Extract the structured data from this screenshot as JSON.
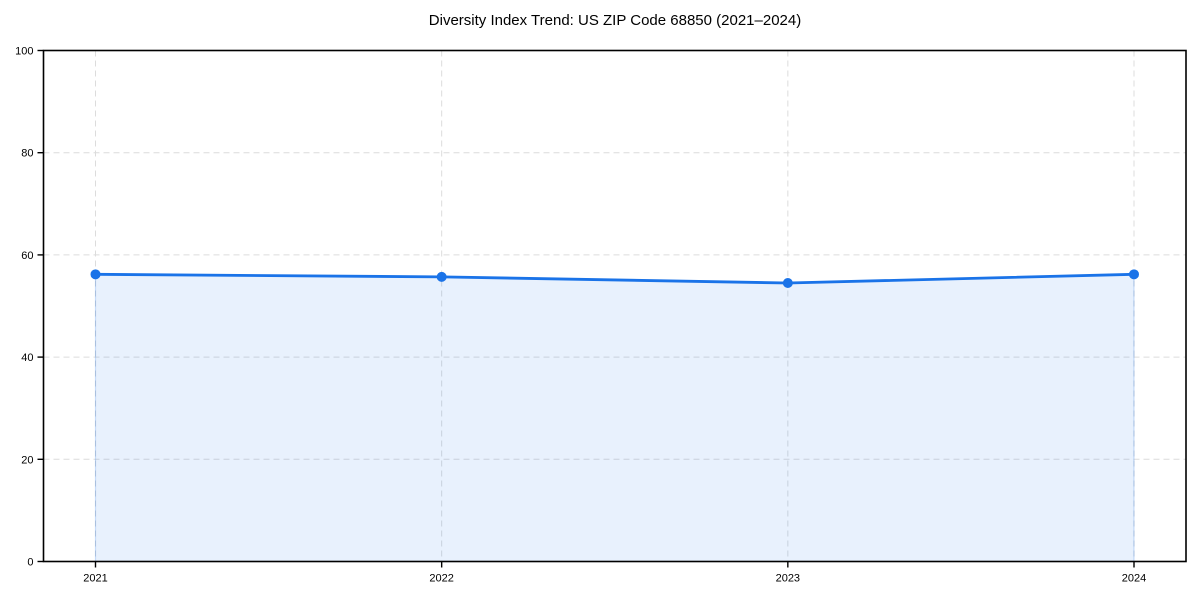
{
  "chart": {
    "title": "Diversity Index Trend: US ZIP Code 68850 (2021–2024)"
  },
  "chart_data": {
    "type": "line",
    "title": "Diversity Index Trend: US ZIP Code 68850 (2021–2024)",
    "categories": [
      "2021",
      "2022",
      "2023",
      "2024"
    ],
    "series": [
      {
        "name": "Diversity Index",
        "values": [
          56.2,
          55.7,
          54.5,
          56.2
        ]
      }
    ],
    "xlabel": "",
    "ylabel": "",
    "ylim": [
      0,
      100
    ],
    "yticks": [
      0,
      20,
      40,
      60,
      80,
      100
    ],
    "grid": true,
    "grid_style": "dashed",
    "legend": "none",
    "area_fill": true,
    "markers": true,
    "colors": {
      "line": "#1a73e8",
      "marker": "#1a73e8",
      "area": "#1a73e8",
      "grid": "#dcdcdc",
      "axis": "#000000",
      "tick_text": "#000000",
      "background": "#ffffff"
    }
  }
}
